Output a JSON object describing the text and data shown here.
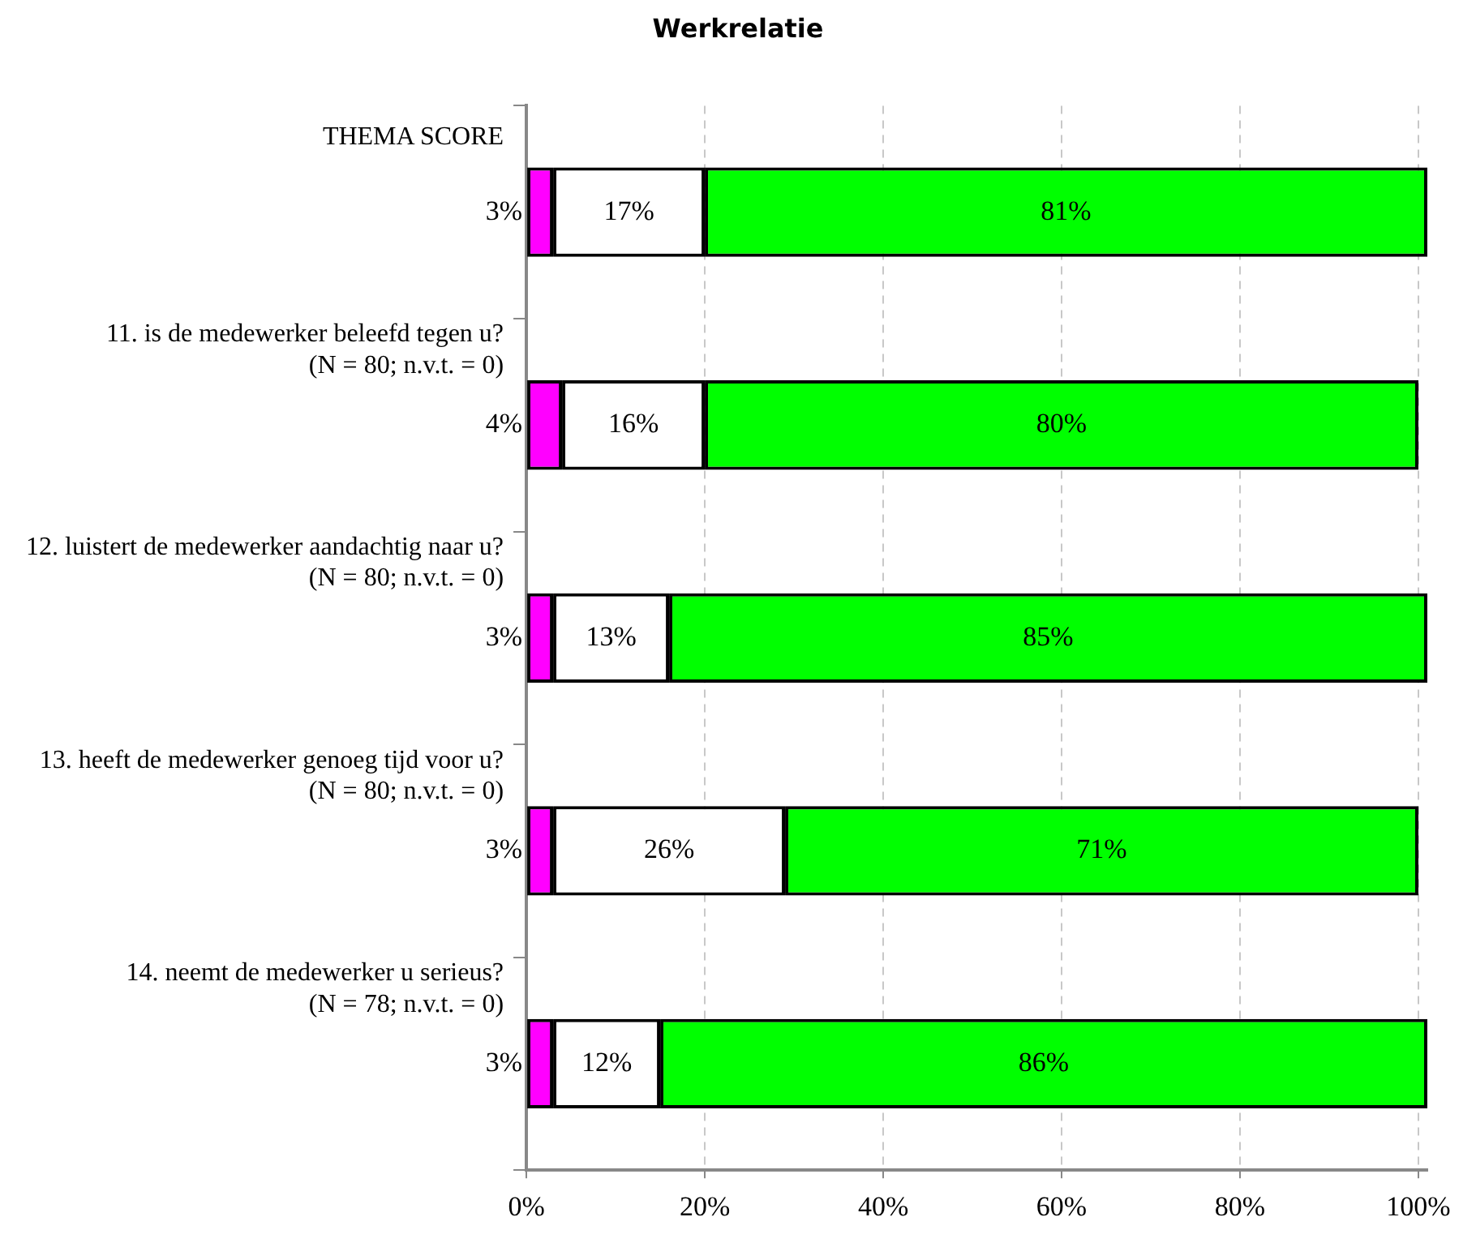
{
  "chart_data": {
    "type": "bar",
    "orientation": "horizontal",
    "stacked": true,
    "title": "Werkrelatie",
    "categories": [
      "THEMA SCORE",
      "11. is de medewerker beleefd tegen u?\n(N = 80; n.v.t. = 0)",
      "12. luistert de medewerker aandachtig naar u?\n(N = 80; n.v.t. = 0)",
      "13. heeft de medewerker genoeg tijd voor u?\n(N = 80; n.v.t. = 0)",
      "14. neemt de medewerker u serieus?\n(N = 78; n.v.t. = 0)"
    ],
    "series": [
      {
        "color": "#ff00ff",
        "values": [
          3,
          4,
          3,
          3,
          3
        ],
        "value_labels": [
          "3%",
          "4%",
          "3%",
          "3%",
          "3%"
        ]
      },
      {
        "color": "#ffffff",
        "values": [
          17,
          16,
          13,
          26,
          12
        ],
        "value_labels": [
          "17%",
          "16%",
          "13%",
          "26%",
          "12%"
        ]
      },
      {
        "color": "#00ff00",
        "values": [
          81,
          80,
          85,
          71,
          86
        ],
        "value_labels": [
          "81%",
          "80%",
          "85%",
          "71%",
          "86%"
        ]
      }
    ],
    "xlim": [
      0,
      101
    ],
    "xticks": [
      {
        "value": 0,
        "label": "0%"
      },
      {
        "value": 20,
        "label": "20%"
      },
      {
        "value": 40,
        "label": "40%"
      },
      {
        "value": 60,
        "label": "60%"
      },
      {
        "value": 80,
        "label": "80%"
      },
      {
        "value": 100,
        "label": "100%"
      }
    ],
    "grid": "x",
    "legend": false
  }
}
